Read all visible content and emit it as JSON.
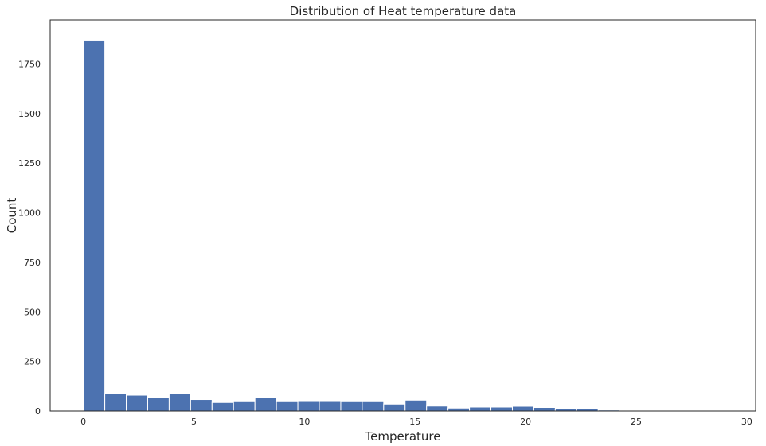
{
  "chart_data": {
    "type": "bar",
    "title": "Distribution of Heat temperature data",
    "xlabel": "Temperature",
    "ylabel": "Count",
    "xlim": [
      -1.5,
      30.4
    ],
    "ylim": [
      0,
      1972
    ],
    "x_ticks": [
      0,
      5,
      10,
      15,
      20,
      25,
      30
    ],
    "y_ticks": [
      0,
      250,
      500,
      750,
      1000,
      1250,
      1500,
      1750
    ],
    "bin_start": 0,
    "bin_width": 0.97,
    "values": [
      1870,
      88,
      80,
      67,
      87,
      58,
      43,
      47,
      67,
      47,
      48,
      48,
      47,
      47,
      35,
      55,
      25,
      15,
      20,
      20,
      24,
      18,
      10,
      13,
      5,
      1,
      1,
      1,
      1,
      1
    ],
    "grid": false,
    "legend": "none",
    "bar_color": "#4c72b0"
  }
}
